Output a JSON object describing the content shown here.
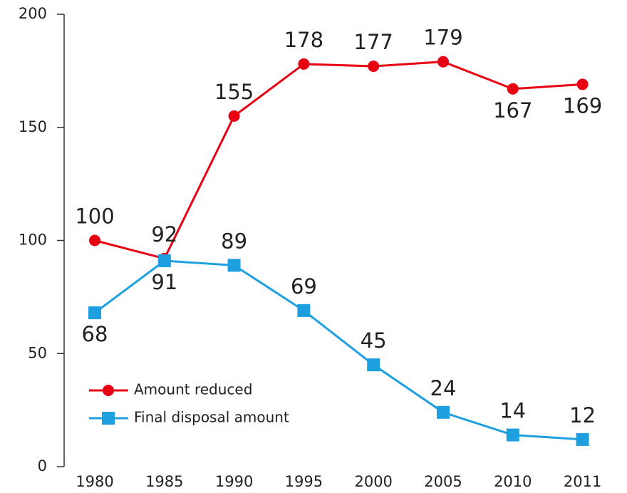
{
  "chart_data": {
    "type": "line",
    "categories": [
      "1980",
      "1985",
      "1990",
      "1995",
      "2000",
      "2005",
      "2010",
      "2011"
    ],
    "series": [
      {
        "name": "Amount reduced",
        "color": "#e60012",
        "marker": "circle",
        "values": [
          100,
          92,
          155,
          178,
          177,
          179,
          167,
          169
        ]
      },
      {
        "name": "Final disposal amount",
        "color": "#1ea0e0",
        "marker": "square",
        "values": [
          68,
          91,
          89,
          69,
          45,
          24,
          14,
          12
        ]
      }
    ],
    "ylim": [
      0,
      200
    ],
    "yticks": [
      0,
      50,
      100,
      150,
      200
    ],
    "grid": false,
    "legend": "lower left"
  }
}
